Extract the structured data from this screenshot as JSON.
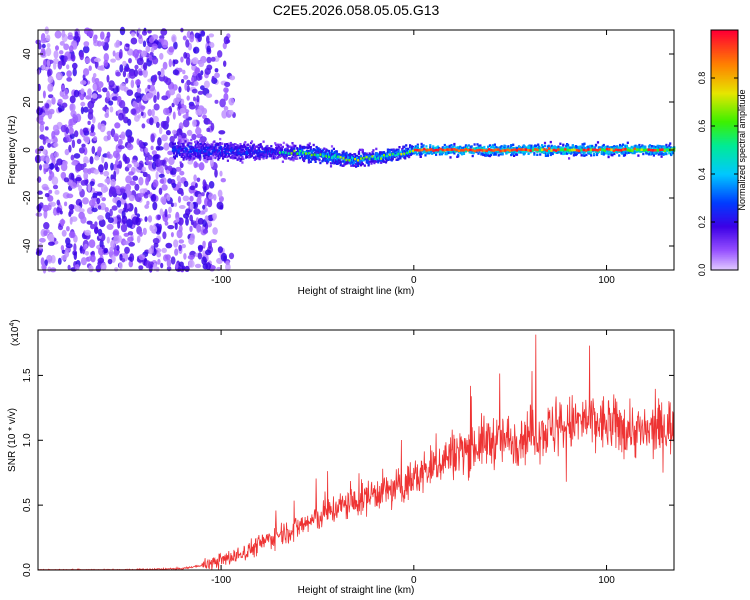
{
  "title": "C2E5.2026.058.05.05.G13",
  "chart_data": [
    {
      "type": "heatmap",
      "xlabel": "Height of straight line (km)",
      "ylabel": "Frequency (Hz)",
      "xlim": [
        -195,
        135
      ],
      "ylim": [
        -50,
        50
      ],
      "xticks": [
        -100,
        0,
        100
      ],
      "yticks": [
        -40,
        -20,
        0,
        20,
        40
      ],
      "grid": false,
      "description_features": {
        "noise_region_x": [
          -195,
          -105
        ],
        "band_start_x": -125,
        "band_center_hz": [
          [
            -125,
            0
          ],
          [
            -60,
            -1
          ],
          [
            -30,
            -4
          ],
          [
            -10,
            -2
          ],
          [
            0,
            0
          ],
          [
            135,
            0
          ]
        ],
        "colormap": "rainbow (violet=0 to red=1)"
      },
      "colorbar": {
        "label": "Normalized spectral amplitude",
        "range": [
          0,
          1
        ],
        "ticks": [
          0.0,
          0.2,
          0.4,
          0.6,
          0.8
        ],
        "tick_labels": [
          "0.0",
          "0.2",
          "0.4",
          "0.6",
          "0.8"
        ]
      }
    },
    {
      "type": "line",
      "xlabel": "Height of straight line (km)",
      "ylabel": "SNR (10 * v/v)",
      "y_multiplier": "(x10",
      "y_multiplier_exp": "4",
      "y_multiplier_close": ")",
      "xlim": [
        -195,
        135
      ],
      "ylim": [
        0,
        1.85
      ],
      "xticks": [
        -100,
        0,
        100
      ],
      "yticks": [
        0.0,
        0.5,
        1.0,
        1.5
      ],
      "ytick_labels": [
        "0.0",
        "0.5",
        "1.0",
        "1.5"
      ],
      "series": [
        {
          "name": "SNR",
          "color": "#ee3333",
          "x": [
            -195,
            -150,
            -120,
            -105,
            -90,
            -80,
            -70,
            -60,
            -50,
            -40,
            -30,
            -20,
            -10,
            0,
            10,
            20,
            30,
            40,
            50,
            60,
            70,
            80,
            90,
            100,
            110,
            120,
            130,
            135
          ],
          "y": [
            0.0,
            0.0,
            0.01,
            0.05,
            0.12,
            0.2,
            0.28,
            0.33,
            0.4,
            0.48,
            0.52,
            0.6,
            0.62,
            0.7,
            0.8,
            0.9,
            0.95,
            1.0,
            1.0,
            1.05,
            1.08,
            1.12,
            1.15,
            1.12,
            1.1,
            1.05,
            1.1,
            1.12
          ]
        }
      ]
    }
  ]
}
